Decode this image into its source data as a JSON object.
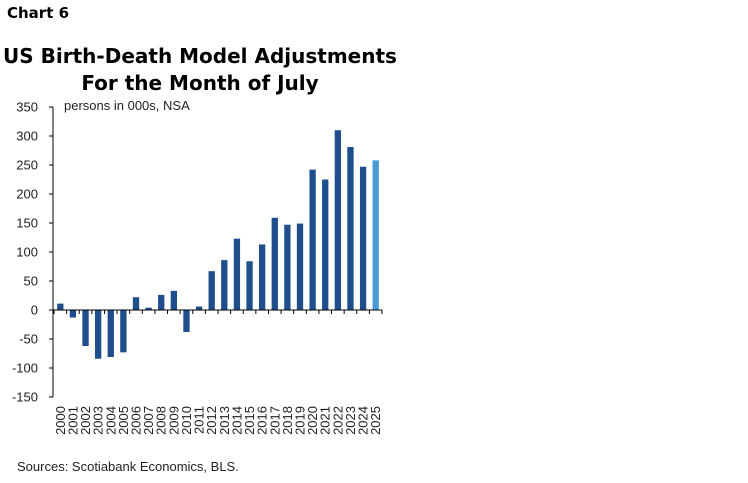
{
  "header": {
    "chart_number": "Chart 6",
    "title_line1": "US Birth-Death Model Adjustments",
    "title_line2": "For the Month of July",
    "units": "persons in 000s, NSA",
    "source": "Sources: Scotiabank Economics, BLS."
  },
  "chart_data": {
    "type": "bar",
    "title": "US Birth-Death Model Adjustments For the Month of July",
    "xlabel": "",
    "ylabel": "persons in 000s, NSA",
    "ylim": [
      -150,
      350
    ],
    "yticks": [
      350,
      300,
      250,
      200,
      150,
      100,
      50,
      0,
      -50,
      -100,
      -150
    ],
    "grid": false,
    "categories": [
      "2000",
      "2001",
      "2002",
      "2003",
      "2004",
      "2005",
      "2006",
      "2007",
      "2008",
      "2009",
      "2010",
      "2011",
      "2012",
      "2013",
      "2014",
      "2015",
      "2016",
      "2017",
      "2018",
      "2019",
      "2020",
      "2021",
      "2022",
      "2023",
      "2024",
      "2025"
    ],
    "values": [
      11,
      -13,
      -62,
      -84,
      -81,
      -73,
      22,
      4,
      26,
      33,
      -38,
      6,
      67,
      86,
      123,
      84,
      113,
      159,
      147,
      149,
      242,
      225,
      310,
      281,
      247,
      258
    ],
    "colors": {
      "bar": "#1f4e8c",
      "highlight": "#4a9ad4",
      "axis": "#000000"
    },
    "highlight_category": "2025"
  }
}
